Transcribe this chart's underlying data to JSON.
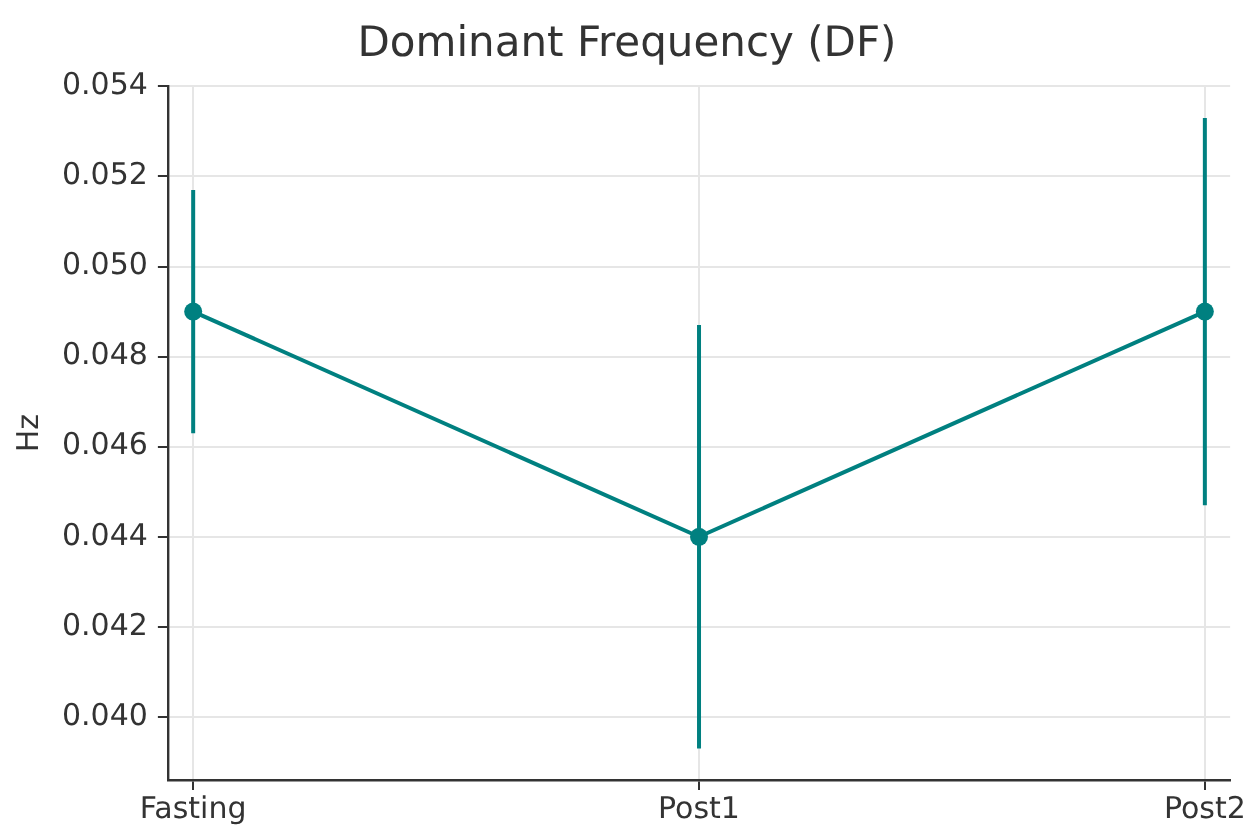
{
  "chart_data": {
    "type": "line",
    "title": "Dominant Frequency (DF)",
    "ylabel": "Hz",
    "categories": [
      "Fasting",
      "Post1",
      "Post2"
    ],
    "series": [
      {
        "color": "#008080",
        "values": [
          0.049,
          0.044,
          0.049
        ],
        "errors": [
          0.0027,
          0.0047,
          0.0043
        ]
      }
    ],
    "ylim": [
      0.0386,
      0.054
    ],
    "yticks": [
      {
        "value": 0.04,
        "label": "0.040"
      },
      0.042,
      0.044,
      0.046,
      0.048,
      {
        "value": 0.05,
        "label": "0.050"
      },
      0.052,
      0.054
    ],
    "grid": true,
    "marker": "circle",
    "line_style": "solid"
  }
}
